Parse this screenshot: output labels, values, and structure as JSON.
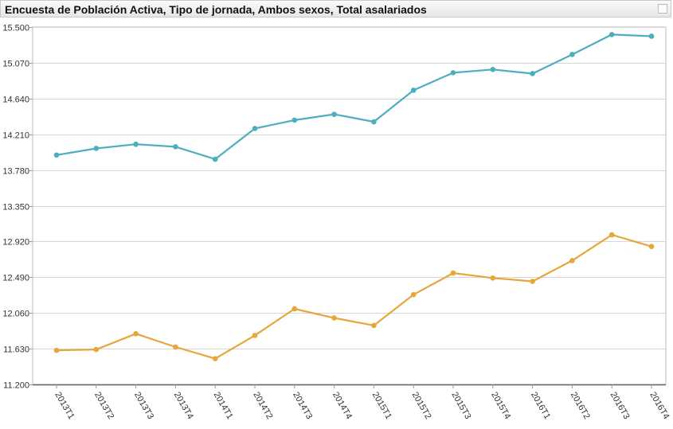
{
  "window": {
    "title": "Encuesta de Población Activa, Tipo de jornada, Ambos sexos, Total asalariados"
  },
  "chart_data": {
    "type": "line",
    "title": "Encuesta de Población Activa, Tipo de jornada, Ambos sexos, Total asalariados",
    "xlabel": "",
    "ylabel": "",
    "categories": [
      "2013T1",
      "2013T2",
      "2013T3",
      "2013T4",
      "2014T1",
      "2014T2",
      "2014T3",
      "2014T4",
      "2015T1",
      "2015T2",
      "2015T3",
      "2015T4",
      "2016T1",
      "2016T2",
      "2016T3",
      "2016T4"
    ],
    "ylim": [
      11200,
      15500
    ],
    "yticks": [
      "11.200",
      "11.630",
      "12.060",
      "12.490",
      "12.920",
      "13.350",
      "13.780",
      "14.210",
      "14.640",
      "15.070",
      "15.500"
    ],
    "grid": true,
    "legend": "none",
    "series": [
      {
        "color": "#4daec0",
        "values": [
          13960,
          14040,
          14090,
          14060,
          13910,
          14280,
          14380,
          14450,
          14360,
          14740,
          14950,
          14990,
          14940,
          15170,
          15410,
          15390
        ]
      },
      {
        "color": "#e6a63a",
        "values": [
          11610,
          11620,
          11810,
          11650,
          11510,
          11790,
          12110,
          12000,
          11910,
          12280,
          12540,
          12480,
          12440,
          12690,
          13000,
          12860
        ]
      }
    ]
  }
}
